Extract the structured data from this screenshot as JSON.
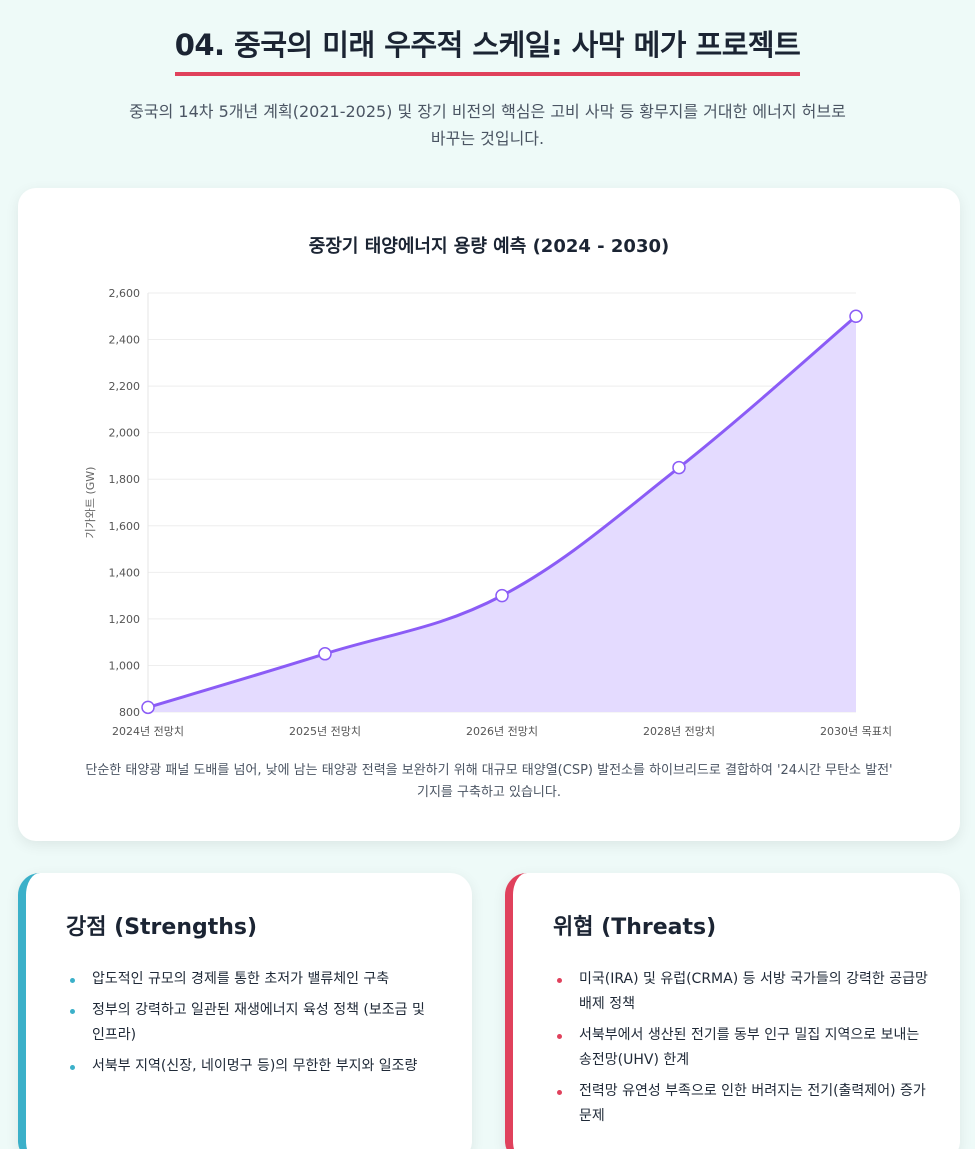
{
  "header": {
    "title": "04. 중국의 미래 우주적 스케일: 사막 메가 프로젝트",
    "subtitle": "중국의 14차 5개년 계획(2021-2025) 및 장기 비전의 핵심은 고비 사막 등 황무지를 거대한 에너지 허브로 바꾸는 것입니다."
  },
  "chart_card": {
    "caption": "단순한 태양광 패널 도배를 넘어, 낮에 남는 태양광 전력을 보완하기 위해 대규모 태양열(CSP) 발전소를 하이브리드로 결합하여 '24시간 무탄소 발전' 기지를 구축하고 있습니다."
  },
  "chart_data": {
    "type": "area",
    "title": "중장기 태양에너지 용량 예측 (2024 - 2030)",
    "ylabel": "기가와트 (GW)",
    "xlabel": "",
    "categories": [
      "2024년 전망치",
      "2025년 전망치",
      "2026년 전망치",
      "2028년 전망치",
      "2030년 목표치"
    ],
    "values": [
      820,
      1050,
      1300,
      1850,
      2500
    ],
    "ylim": [
      800,
      2600
    ],
    "yticks": [
      "800",
      "1,000",
      "1,200",
      "1,400",
      "1,600",
      "1,800",
      "2,000",
      "2,200",
      "2,400",
      "2,600"
    ],
    "grid": true,
    "colors": {
      "line": "#8b5cf6",
      "fill": "#e4dbff",
      "point_fill": "#ffffff"
    }
  },
  "strengths": {
    "title": "강점 (Strengths)",
    "accent": "#3bb0c9",
    "items": [
      "압도적인 규모의 경제를 통한 초저가 밸류체인 구축",
      "정부의 강력하고 일관된 재생에너지 육성 정책 (보조금 및 인프라)",
      "서북부 지역(신장, 네이멍구 등)의 무한한 부지와 일조량"
    ]
  },
  "threats": {
    "title": "위협 (Threats)",
    "accent": "#e0415c",
    "items": [
      "미국(IRA) 및 유럽(CRMA) 등 서방 국가들의 강력한 공급망 배제 정책",
      "서북부에서 생산된 전기를 동부 인구 밀집 지역으로 보내는 송전망(UHV) 한계",
      "전력망 유연성 부족으로 인한 버려지는 전기(출력제어) 증가 문제"
    ]
  }
}
